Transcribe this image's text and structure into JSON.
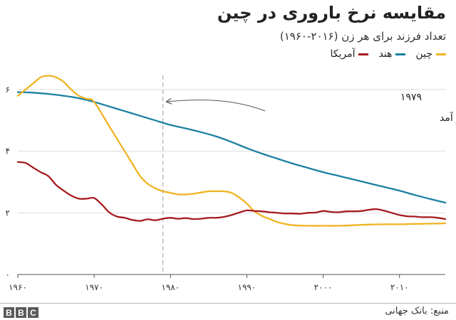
{
  "chart_data": {
    "type": "line",
    "title": "مقایسه نرخ باروری در چین",
    "subtitle": "تعداد فرزند برای هر زن (۲۰۱۶-۱۹۶۰)",
    "xlim": [
      1960,
      2016
    ],
    "ylim": [
      0,
      6
    ],
    "x_ticks": [
      {
        "value": 1960,
        "label": "۱۹۶۰"
      },
      {
        "value": 1970,
        "label": "۱۹۷۰"
      },
      {
        "value": 1980,
        "label": "۱۹۸۰"
      },
      {
        "value": 1990,
        "label": "۱۹۹۰"
      },
      {
        "value": 2000,
        "label": "۲۰۰۰"
      },
      {
        "value": 2010,
        "label": "۲۰۱۰"
      }
    ],
    "y_ticks": [
      {
        "value": 0,
        "label": "۰"
      },
      {
        "value": 2,
        "label": "۲"
      },
      {
        "value": 4,
        "label": "۴"
      },
      {
        "value": 6,
        "label": "۶"
      }
    ],
    "grid": "horizontal",
    "legend_position": "top-right",
    "series": [
      {
        "name": "چین",
        "color": "#f0b323",
        "x": [
          1960,
          1962,
          1963,
          1964,
          1965,
          1966,
          1967,
          1968,
          1969,
          1970,
          1972,
          1974,
          1975,
          1976,
          1977,
          1978,
          1979,
          1980,
          1981,
          1982,
          1983,
          1984,
          1985,
          1986,
          1987,
          1988,
          1989,
          1990,
          1991,
          1992,
          1993,
          1994,
          1995,
          1996,
          1998,
          2000,
          2002,
          2004,
          2006,
          2008,
          2010,
          2012,
          2014,
          2016
        ],
        "y": [
          5.8,
          6.2,
          6.4,
          6.45,
          6.4,
          6.25,
          6.0,
          5.8,
          5.7,
          5.6,
          4.8,
          4.0,
          3.6,
          3.2,
          2.95,
          2.8,
          2.7,
          2.65,
          2.6,
          2.6,
          2.62,
          2.66,
          2.7,
          2.7,
          2.7,
          2.65,
          2.5,
          2.3,
          2.05,
          1.9,
          1.8,
          1.7,
          1.64,
          1.6,
          1.58,
          1.58,
          1.58,
          1.6,
          1.62,
          1.63,
          1.63,
          1.64,
          1.65,
          1.66
        ]
      },
      {
        "name": "هند",
        "color": "#1b80a0",
        "x": [
          1960,
          1962,
          1964,
          1966,
          1968,
          1970,
          1972,
          1974,
          1976,
          1978,
          1980,
          1982,
          1984,
          1986,
          1988,
          1990,
          1992,
          1994,
          1996,
          1998,
          2000,
          2002,
          2004,
          2006,
          2008,
          2010,
          2012,
          2014,
          2016
        ],
        "y": [
          5.92,
          5.9,
          5.86,
          5.8,
          5.72,
          5.6,
          5.45,
          5.3,
          5.15,
          5.0,
          4.85,
          4.74,
          4.62,
          4.48,
          4.3,
          4.1,
          3.92,
          3.76,
          3.6,
          3.46,
          3.32,
          3.2,
          3.08,
          2.96,
          2.84,
          2.72,
          2.58,
          2.45,
          2.33
        ]
      },
      {
        "name": "آمریکا",
        "color": "#a51c20",
        "x": [
          1960,
          1961,
          1962,
          1963,
          1964,
          1965,
          1966,
          1967,
          1968,
          1969,
          1970,
          1971,
          1972,
          1973,
          1974,
          1975,
          1976,
          1977,
          1978,
          1979,
          1980,
          1981,
          1982,
          1983,
          1984,
          1985,
          1986,
          1987,
          1988,
          1989,
          1990,
          1991,
          1992,
          1993,
          1994,
          1995,
          1996,
          1997,
          1998,
          1999,
          2000,
          2001,
          2002,
          2003,
          2004,
          2005,
          2006,
          2007,
          2008,
          2009,
          2010,
          2011,
          2012,
          2013,
          2014,
          2015,
          2016
        ],
        "y": [
          3.65,
          3.62,
          3.47,
          3.32,
          3.19,
          2.91,
          2.72,
          2.56,
          2.46,
          2.46,
          2.48,
          2.27,
          2.01,
          1.88,
          1.84,
          1.77,
          1.74,
          1.79,
          1.76,
          1.81,
          1.84,
          1.81,
          1.83,
          1.8,
          1.81,
          1.84,
          1.84,
          1.87,
          1.93,
          2.01,
          2.08,
          2.06,
          2.05,
          2.02,
          2.0,
          1.98,
          1.98,
          1.97,
          2.0,
          2.01,
          2.06,
          2.03,
          2.02,
          2.05,
          2.05,
          2.06,
          2.1,
          2.12,
          2.07,
          2.0,
          1.93,
          1.89,
          1.88,
          1.86,
          1.86,
          1.84,
          1.8
        ]
      }
    ],
    "annotation": {
      "year_label": "۱۹۷۹",
      "text": "سیاست تک فرزندی به اجرا در آمد",
      "x": 1979
    }
  },
  "footer": {
    "source": "منبع: بانک جهانی",
    "logo_letters": [
      "B",
      "B",
      "C"
    ]
  }
}
